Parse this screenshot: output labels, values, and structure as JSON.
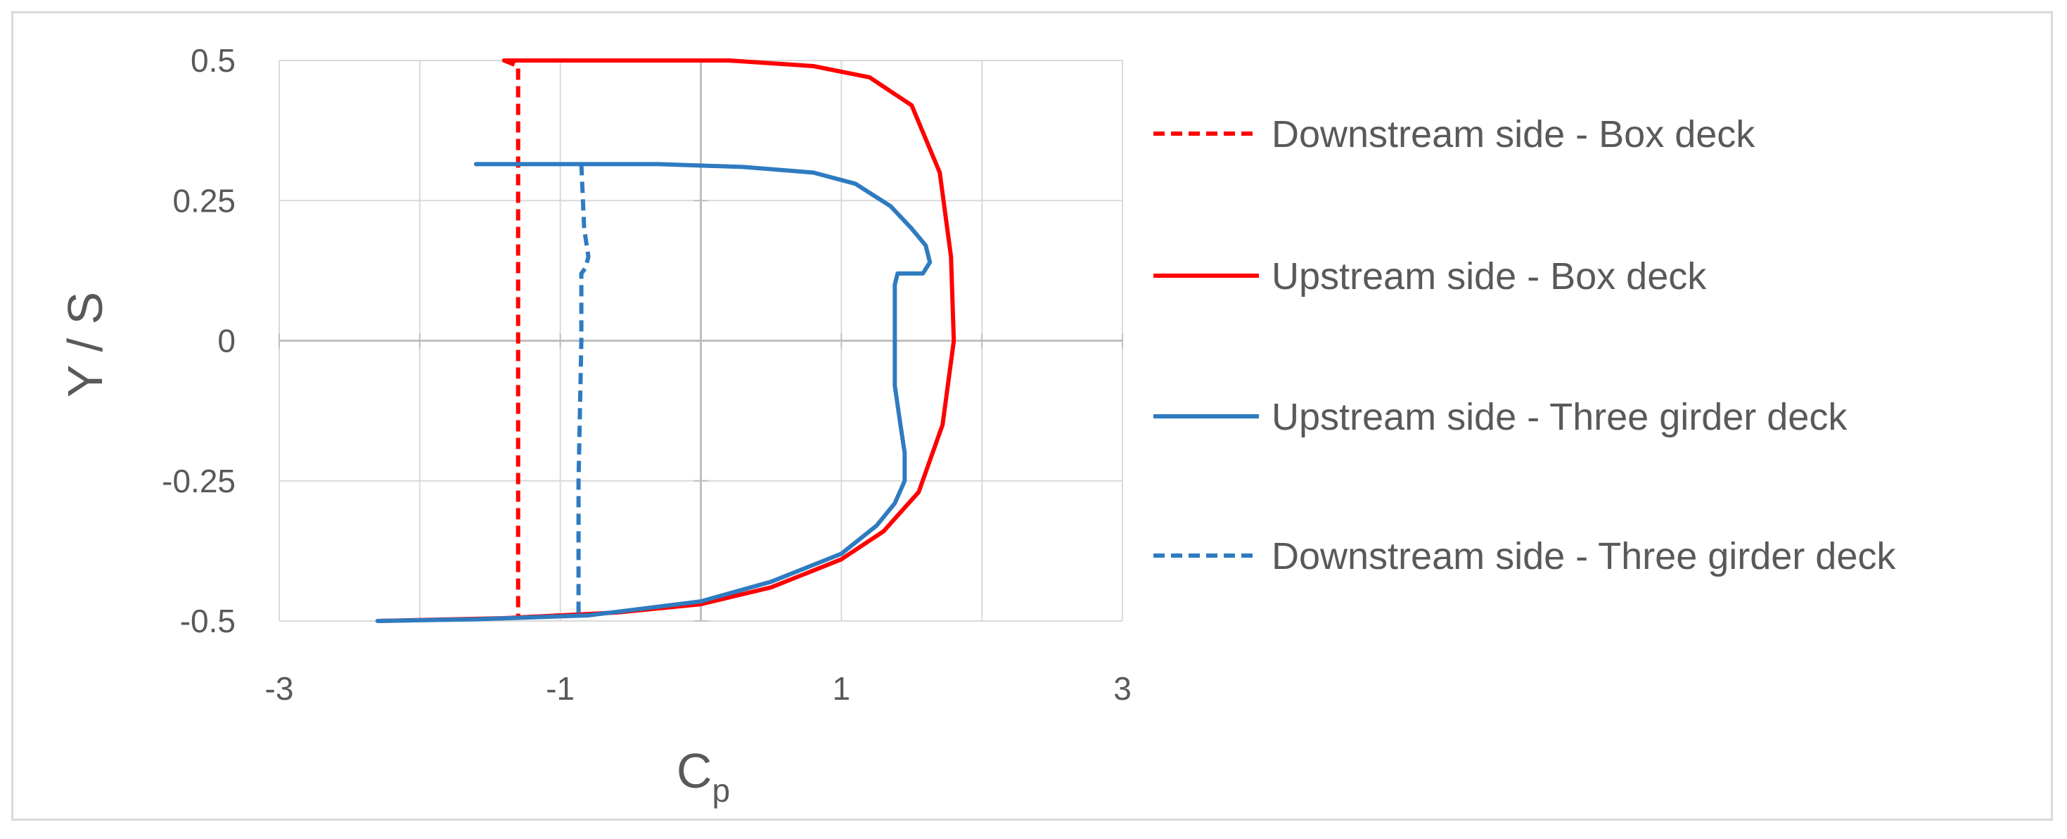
{
  "chart_data": {
    "type": "line",
    "title": "",
    "xlabel_main": "C",
    "xlabel_sub": "p",
    "ylabel": "Y / S",
    "xlim": [
      -3,
      3
    ],
    "ylim": [
      -0.5,
      0.5
    ],
    "x_ticks": [
      -3,
      -1,
      1,
      3
    ],
    "x_tick_labels": [
      "-3",
      "-1",
      "1",
      "3"
    ],
    "y_ticks": [
      0.5,
      0.25,
      0,
      -0.25,
      -0.5
    ],
    "y_tick_labels": [
      "0.5",
      "0.25",
      "0",
      "-0.25",
      "-0.5"
    ],
    "grid": true,
    "legend_position": "right",
    "series": [
      {
        "name": "Downstream side - Box deck",
        "color": "#ff0000",
        "dash": true,
        "points": [
          [
            -1.4,
            0.5
          ],
          [
            -1.3,
            0.49
          ],
          [
            -1.3,
            0.25
          ],
          [
            -1.3,
            0
          ],
          [
            -1.3,
            -0.25
          ],
          [
            -1.3,
            -0.49
          ]
        ]
      },
      {
        "name": "Upstream side - Box deck",
        "color": "#ff0000",
        "dash": false,
        "points": [
          [
            -1.4,
            0.5
          ],
          [
            -0.5,
            0.5
          ],
          [
            0.2,
            0.5
          ],
          [
            0.8,
            0.49
          ],
          [
            1.2,
            0.47
          ],
          [
            1.5,
            0.42
          ],
          [
            1.7,
            0.3
          ],
          [
            1.78,
            0.15
          ],
          [
            1.8,
            0.0
          ],
          [
            1.72,
            -0.15
          ],
          [
            1.55,
            -0.27
          ],
          [
            1.3,
            -0.34
          ],
          [
            1.0,
            -0.39
          ],
          [
            0.5,
            -0.44
          ],
          [
            0.0,
            -0.47
          ],
          [
            -0.6,
            -0.485
          ],
          [
            -1.4,
            -0.495
          ],
          [
            -2.3,
            -0.5
          ]
        ]
      },
      {
        "name": "Upstream side - Three girder deck",
        "color": "#2e7bc0",
        "dash": false,
        "points": [
          [
            -1.6,
            0.315
          ],
          [
            -1.0,
            0.315
          ],
          [
            -0.3,
            0.315
          ],
          [
            0.3,
            0.31
          ],
          [
            0.8,
            0.3
          ],
          [
            1.1,
            0.28
          ],
          [
            1.35,
            0.24
          ],
          [
            1.5,
            0.2
          ],
          [
            1.6,
            0.17
          ],
          [
            1.63,
            0.14
          ],
          [
            1.58,
            0.12
          ],
          [
            1.4,
            0.12
          ],
          [
            1.38,
            0.1
          ],
          [
            1.38,
            0.0
          ],
          [
            1.38,
            -0.08
          ],
          [
            1.42,
            -0.15
          ],
          [
            1.45,
            -0.2
          ],
          [
            1.45,
            -0.25
          ],
          [
            1.38,
            -0.29
          ],
          [
            1.25,
            -0.33
          ],
          [
            1.0,
            -0.38
          ],
          [
            0.5,
            -0.43
          ],
          [
            0.0,
            -0.465
          ],
          [
            -0.8,
            -0.49
          ],
          [
            -1.6,
            -0.497
          ],
          [
            -2.3,
            -0.5
          ]
        ]
      },
      {
        "name": "Downstream side - Three girder deck",
        "color": "#2e7bc0",
        "dash": true,
        "points": [
          [
            -0.85,
            0.315
          ],
          [
            -0.83,
            0.2
          ],
          [
            -0.8,
            0.15
          ],
          [
            -0.82,
            0.13
          ],
          [
            -0.85,
            0.12
          ],
          [
            -0.85,
            0.0
          ],
          [
            -0.87,
            -0.25
          ],
          [
            -0.87,
            -0.49
          ]
        ]
      }
    ]
  }
}
